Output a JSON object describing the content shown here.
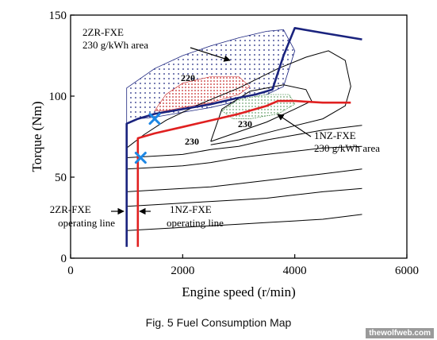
{
  "chart_data": {
    "type": "line",
    "title": "",
    "xlabel": "Engine speed (r/min)",
    "ylabel": "Torque (Nm)",
    "xlim": [
      0,
      6000
    ],
    "ylim": [
      0,
      150
    ],
    "xticks": [
      "0",
      "2000",
      "4000",
      "6000"
    ],
    "yticks": [
      "0",
      "50",
      "100",
      "150"
    ],
    "grid": false,
    "series": [
      {
        "name": "2ZR-FXE operating line",
        "color": "#1a237e",
        "x": [
          1000,
          1000,
          1000,
          1200,
          1500,
          2000,
          2500,
          3000,
          3300,
          3600,
          3800,
          4000,
          4500,
          5200
        ],
        "y": [
          7,
          60,
          83,
          86,
          89,
          92,
          95,
          99,
          101,
          104,
          125,
          142,
          139,
          135
        ]
      },
      {
        "name": "1NZ-FXE operating line",
        "color": "#e02020",
        "x": [
          1200,
          1200,
          1200,
          1500,
          2000,
          2500,
          3000,
          3500,
          3700,
          4000,
          4500,
          5000
        ],
        "y": [
          7,
          63,
          74,
          77,
          81,
          85,
          89,
          94,
          97,
          97,
          96,
          96
        ]
      },
      {
        "name": "contours",
        "color": "#000000",
        "lines": [
          {
            "x": [
              1000,
              1500,
              2000,
              2500,
              3000,
              3500,
              4000,
              4500,
              5200
            ],
            "y": [
              17,
              18,
              19,
              20,
              21,
              22,
              23,
              24,
              27
            ]
          },
          {
            "x": [
              1000,
              1500,
              2000,
              2500,
              3000,
              3500,
              4000,
              4500,
              5200
            ],
            "y": [
              32,
              33,
              34,
              35,
              36,
              37,
              39,
              41,
              43
            ]
          },
          {
            "x": [
              1000,
              1500,
              2000,
              2500,
              3000,
              3500,
              4000,
              4500,
              5200
            ],
            "y": [
              41,
              42,
              43,
              44,
              46,
              48,
              50,
              52,
              55
            ]
          },
          {
            "x": [
              1000,
              1500,
              2000,
              2500,
              3000,
              3500,
              4000,
              4500,
              5200
            ],
            "y": [
              55,
              56,
              57,
              59,
              62,
              64,
              66,
              68,
              69
            ]
          },
          {
            "x": [
              1000,
              1500,
              2000,
              2500,
              3000,
              3500,
              4000,
              4500,
              5200
            ],
            "y": [
              62,
              63,
              64,
              67,
              69,
              73,
              76,
              79,
              82
            ]
          },
          {
            "x": [
              1000,
              1300,
              1700,
              2300,
              3000,
              3700,
              4200,
              4600,
              4900,
              5000,
              4900,
              4500,
              3800,
              3000,
              2500
            ],
            "y": [
              68,
              76,
              85,
              95,
              105,
              117,
              124,
              128,
              122,
              106,
              94,
              86,
              80,
              73,
              70
            ]
          },
          {
            "x": [
              2500,
              3000,
              3500,
              4000,
              4300,
              4200,
              3800,
              3200,
              2700,
              2500
            ],
            "y": [
              72,
              78,
              84,
              92,
              97,
              104,
              107,
              103,
              92,
              72
            ]
          }
        ]
      }
    ],
    "areas": [
      {
        "name": "2ZR-FXE 230 g/kWh area",
        "pattern": "dots",
        "color": "#1a237e",
        "x": [
          1000,
          1000,
          1500,
          2000,
          2500,
          3000,
          3500,
          3800,
          4000,
          3800,
          3500,
          3000,
          2500,
          2000,
          1500,
          1200,
          1000
        ],
        "y": [
          83,
          105,
          117,
          125,
          131,
          136,
          140,
          141,
          128,
          106,
          101,
          97,
          93,
          90,
          87,
          86,
          83
        ]
      },
      {
        "name": "220 area",
        "pattern": "red-dots",
        "color": "#c62828",
        "x": [
          1500,
          1700,
          2000,
          2500,
          3000,
          3200,
          3000,
          2500,
          2000,
          1700,
          1500
        ],
        "y": [
          91,
          101,
          108,
          112,
          112,
          106,
          101,
          96,
          93,
          91,
          91
        ]
      },
      {
        "name": "1NZ-FXE 230 g/kWh area",
        "pattern": "green-dots",
        "color": "#2e7d32",
        "x": [
          2700,
          3000,
          3500,
          3900,
          4000,
          3700,
          3200,
          2900,
          2700
        ],
        "y": [
          91,
          98,
          101,
          101,
          95,
          89,
          86,
          86,
          91
        ]
      }
    ],
    "markers": [
      {
        "label": "2ZR-FXE best point",
        "x": 1500,
        "y": 86,
        "color": "#1e88e5"
      },
      {
        "label": "1NZ-FXE best point",
        "x": 1250,
        "y": 62,
        "color": "#1e88e5"
      }
    ],
    "annotations": [
      {
        "text": [
          "2ZR-FXE",
          "230 g/kWh area"
        ]
      },
      {
        "text": [
          "1NZ-FXE",
          "230 g/kWh area"
        ]
      },
      {
        "text": [
          "2ZR-FXE",
          "operating line"
        ]
      },
      {
        "text": [
          "1NZ-FXE",
          "operating line"
        ]
      },
      {
        "text": [
          "220"
        ]
      },
      {
        "text": [
          "230"
        ]
      },
      {
        "text": [
          "230"
        ]
      }
    ]
  },
  "caption": "Fig. 5 Fuel Consumption Map",
  "watermark": "thewolfweb.com"
}
